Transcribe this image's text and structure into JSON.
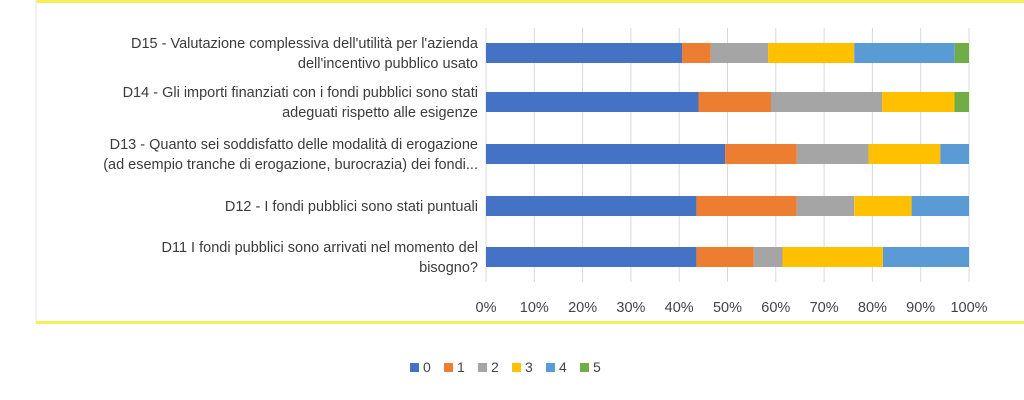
{
  "chart_data": {
    "type": "bar",
    "orientation": "horizontal",
    "stacked": "percent",
    "categories": [
      [
        "D15 - Valutazione complessiva dell'utilità per l'azienda",
        "dell'incentivo pubblico usato"
      ],
      [
        "D14 - Gli importi finanziati con i fondi pubblici sono stati",
        "adeguati rispetto alle esigenze"
      ],
      [
        "D13 - Quanto sei soddisfatto delle modalità di erogazione",
        "(ad esempio tranche di erogazione, burocrazia) dei fondi..."
      ],
      [
        "D12 - I fondi pubblici sono stati puntuali"
      ],
      [
        "D11 I fondi pubblici sono arrivati nel momento del",
        "bisogno?"
      ]
    ],
    "series": [
      {
        "name": "0",
        "color": "#4472C4",
        "values": [
          41,
          44,
          50,
          44,
          44
        ]
      },
      {
        "name": "1",
        "color": "#ED7D31",
        "values": [
          6,
          15,
          15,
          21,
          12
        ]
      },
      {
        "name": "2",
        "color": "#A5A5A5",
        "values": [
          12,
          23,
          15,
          12,
          6
        ]
      },
      {
        "name": "3",
        "color": "#FFC000",
        "values": [
          18,
          15,
          15,
          12,
          21
        ]
      },
      {
        "name": "4",
        "color": "#5B9BD5",
        "values": [
          21,
          0,
          6,
          12,
          18
        ]
      },
      {
        "name": "5",
        "color": "#70AD47",
        "values": [
          3,
          3,
          0,
          0,
          0
        ]
      }
    ],
    "xticks": [
      "0%",
      "10%",
      "20%",
      "30%",
      "40%",
      "50%",
      "60%",
      "70%",
      "80%",
      "90%",
      "100%"
    ],
    "xlim": [
      0,
      100
    ],
    "grid": true,
    "legend_position": "bottom",
    "frame_border_color": "#F5EE5A"
  }
}
